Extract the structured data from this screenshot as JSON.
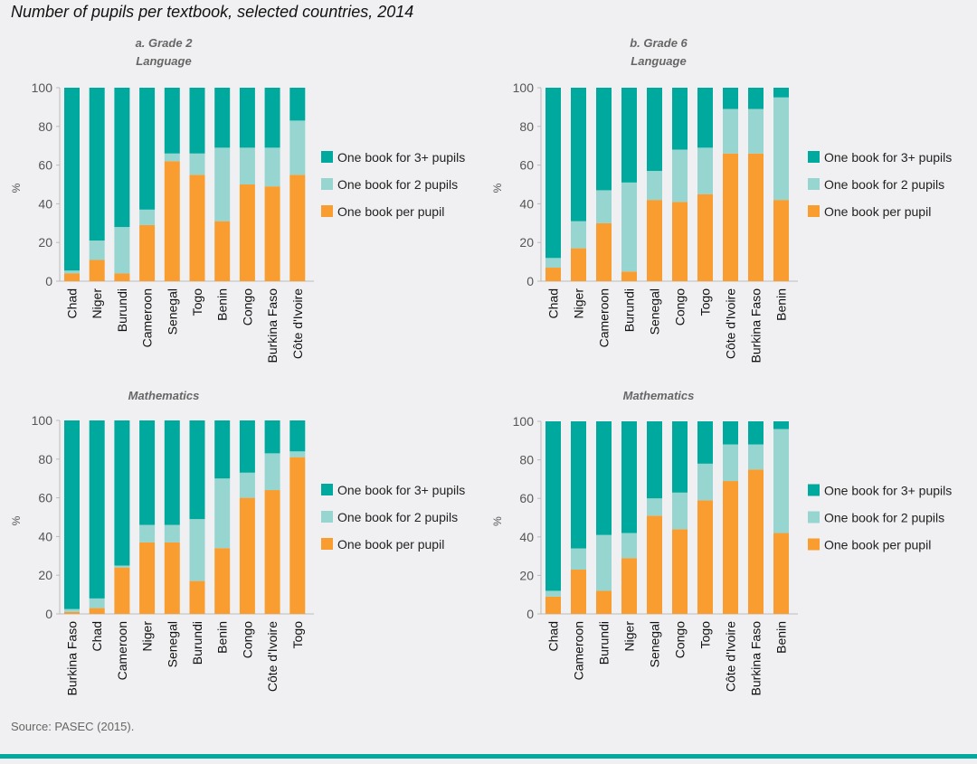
{
  "title": "Number of pupils per textbook, selected countries, 2014",
  "source": "Source: PASEC (2015).",
  "colors": {
    "three_plus": "#00a99d",
    "two": "#96d5d0",
    "one": "#f99d31",
    "background": "#f0f0f2",
    "rule": "#00a99d"
  },
  "legend": [
    "One book for 3+ pupils",
    "One book for 2 pupils",
    "One book per pupil"
  ],
  "chart_data": [
    {
      "type": "bar",
      "stacked": true,
      "title": "a. Grade 2",
      "subtitle": "Language",
      "ylabel": "%",
      "ylim": [
        0,
        100
      ],
      "yticks": [
        "0",
        "20",
        "40",
        "60",
        "80",
        "100"
      ],
      "categories": [
        "Chad",
        "Niger",
        "Burundi",
        "Cameroon",
        "Senegal",
        "Togo",
        "Benin",
        "Congo",
        "Burkina Faso",
        "Côte d'Ivoire"
      ],
      "series": [
        {
          "name": "One book per pupil",
          "values": [
            4,
            11,
            4,
            29,
            62,
            55,
            31,
            50,
            49,
            55
          ]
        },
        {
          "name": "One book for 2 pupils",
          "values": [
            1.5,
            10,
            24,
            8,
            4,
            11,
            38,
            19,
            20,
            28
          ]
        },
        {
          "name": "One book for 3+ pupils",
          "values": [
            94.5,
            79,
            72,
            63,
            34,
            34,
            31,
            31,
            31,
            17
          ]
        }
      ]
    },
    {
      "type": "bar",
      "stacked": true,
      "title": "b. Grade 6",
      "subtitle": "Language",
      "ylabel": "%",
      "ylim": [
        0,
        100
      ],
      "yticks": [
        "0",
        "20",
        "40",
        "60",
        "80",
        "100"
      ],
      "categories": [
        "Chad",
        "Niger",
        "Cameroon",
        "Burundi",
        "Senegal",
        "Congo",
        "Togo",
        "Côte d'Ivoire",
        "Burkina Faso",
        "Benin"
      ],
      "series": [
        {
          "name": "One book per pupil",
          "values": [
            7,
            17,
            30,
            5,
            42,
            41,
            45,
            66,
            66,
            42
          ]
        },
        {
          "name": "One book for 2 pupils",
          "values": [
            5,
            14,
            17,
            46,
            15,
            27,
            24,
            23,
            23,
            53
          ]
        },
        {
          "name": "One book for 3+ pupils",
          "values": [
            88,
            69,
            53,
            49,
            43,
            32,
            31,
            11,
            11,
            5
          ]
        }
      ]
    },
    {
      "type": "bar",
      "stacked": true,
      "title": "",
      "subtitle": "Mathematics",
      "ylabel": "%",
      "ylim": [
        0,
        100
      ],
      "yticks": [
        "0",
        "20",
        "40",
        "60",
        "80",
        "100"
      ],
      "categories": [
        "Burkina Faso",
        "Chad",
        "Cameroon",
        "Niger",
        "Senegal",
        "Burundi",
        "Benin",
        "Congo",
        "Côte d'Ivoire",
        "Togo"
      ],
      "series": [
        {
          "name": "One book per pupil",
          "values": [
            1,
            3,
            24,
            37,
            37,
            17,
            34,
            60,
            64,
            81
          ]
        },
        {
          "name": "One book for 2 pupils",
          "values": [
            1.5,
            5,
            1,
            9,
            9,
            32,
            36,
            13,
            19,
            3
          ]
        },
        {
          "name": "One book for 3+ pupils",
          "values": [
            97.5,
            92,
            75,
            54,
            54,
            51,
            30,
            27,
            17,
            16
          ]
        }
      ]
    },
    {
      "type": "bar",
      "stacked": true,
      "title": "",
      "subtitle": "Mathematics",
      "ylabel": "%",
      "ylim": [
        0,
        100
      ],
      "yticks": [
        "0",
        "20",
        "40",
        "60",
        "80",
        "100"
      ],
      "categories": [
        "Chad",
        "Cameroon",
        "Burundi",
        "Niger",
        "Senegal",
        "Congo",
        "Togo",
        "Côte d'Ivoire",
        "Burkina Faso",
        "Benin"
      ],
      "series": [
        {
          "name": "One book per pupil",
          "values": [
            9,
            23,
            12,
            29,
            51,
            44,
            59,
            69,
            75,
            42
          ]
        },
        {
          "name": "One book for 2 pupils",
          "values": [
            3,
            11,
            29,
            13,
            9,
            19,
            19,
            19,
            13,
            54
          ]
        },
        {
          "name": "One book for 3+ pupils",
          "values": [
            88,
            66,
            59,
            58,
            40,
            37,
            22,
            12,
            12,
            4
          ]
        }
      ]
    }
  ]
}
